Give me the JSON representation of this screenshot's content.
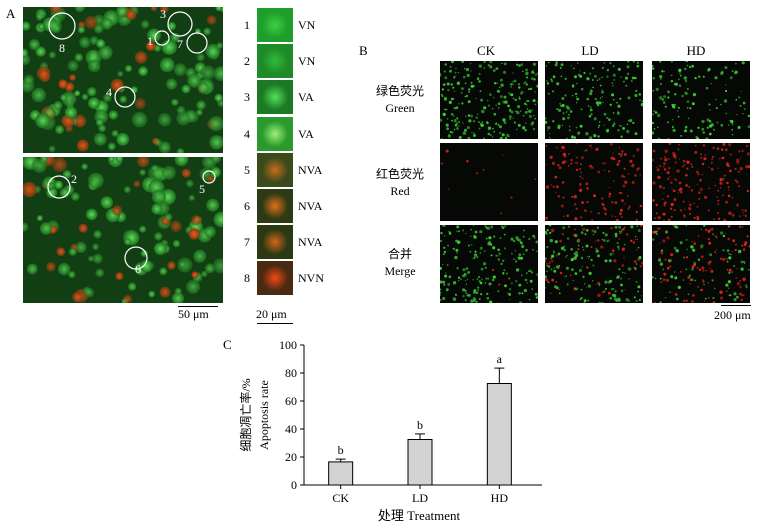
{
  "panels": {
    "a_label": "A",
    "b_label": "B",
    "c_label": "C"
  },
  "panel_a": {
    "circle_labels_top": [
      "8",
      "3",
      "1",
      "7",
      "4"
    ],
    "circle_labels_bottom": [
      "2",
      "5",
      "6"
    ],
    "scale_main": "50 μm",
    "scale_cells": "20 μm",
    "cells": [
      {
        "num": "1",
        "type": "VN",
        "color": "#1e9e2a",
        "core": "#3fcf45"
      },
      {
        "num": "2",
        "type": "VN",
        "color": "#1e8a28",
        "core": "#2fbd3a"
      },
      {
        "num": "3",
        "type": "VA",
        "color": "#1c7a24",
        "core": "#52e05a"
      },
      {
        "num": "4",
        "type": "VA",
        "color": "#2a9a2c",
        "core": "#9cf07a"
      },
      {
        "num": "5",
        "type": "NVA",
        "color": "#3a4a1a",
        "core": "#c66a1e"
      },
      {
        "num": "6",
        "type": "NVA",
        "color": "#2e3a14",
        "core": "#e0701c"
      },
      {
        "num": "7",
        "type": "NVA",
        "color": "#2a3814",
        "core": "#d2661a"
      },
      {
        "num": "8",
        "type": "NVN",
        "color": "#4a2a10",
        "core": "#f04a14"
      }
    ]
  },
  "panel_b": {
    "columns": [
      "CK",
      "LD",
      "HD"
    ],
    "rows": [
      {
        "cn": "绿色荧光",
        "en": "Green"
      },
      {
        "cn": "红色荧光",
        "en": "Red"
      },
      {
        "cn": "合并",
        "en": "Merge"
      }
    ],
    "scale": "200 μm"
  },
  "chart_data": {
    "type": "bar",
    "categories": [
      "CK",
      "LD",
      "HD"
    ],
    "values": [
      16.5,
      32.5,
      72.5
    ],
    "errors": [
      2,
      4,
      11
    ],
    "letters": [
      "b",
      "b",
      "a"
    ],
    "ylabel_cn": "细胞凋亡率/%",
    "ylabel_en": "Apoptosis rate",
    "xlabel": "处理 Treatment",
    "ylim": [
      0,
      100
    ],
    "yticks": [
      "0",
      "20",
      "40",
      "60",
      "80",
      "100"
    ],
    "bar_color": "#d3d3d3"
  }
}
